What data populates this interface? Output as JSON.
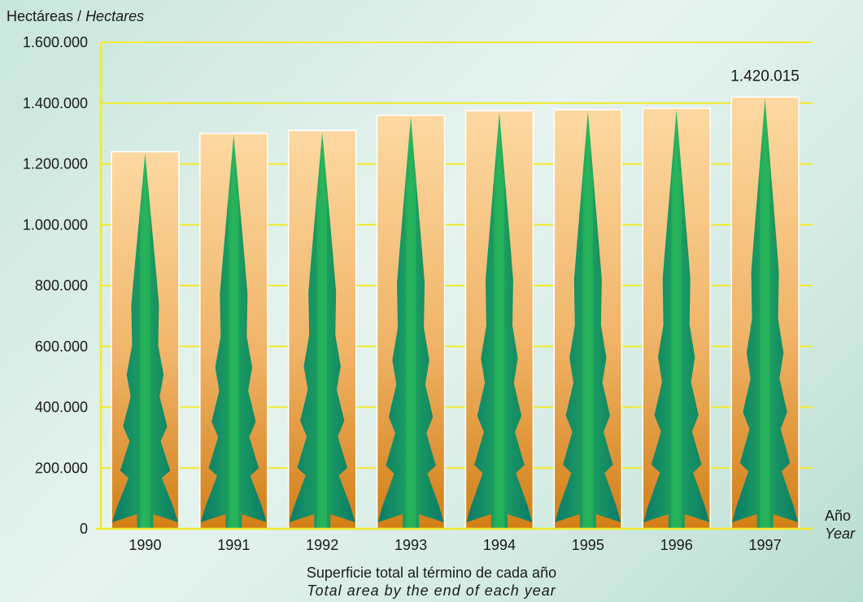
{
  "chart_data": {
    "type": "bar",
    "ylabel_es": "Hectáreas",
    "ylabel_sep": " / ",
    "ylabel_en": "Hectares",
    "xlabel_es": "Año",
    "xlabel_en": "Year",
    "caption_es": "Superficie total al término de cada año",
    "caption_en": "Total area by the end of each year",
    "categories": [
      "1990",
      "1991",
      "1992",
      "1993",
      "1994",
      "1995",
      "1996",
      "1997"
    ],
    "values": [
      1240000,
      1300000,
      1310000,
      1360000,
      1375000,
      1378000,
      1383000,
      1420015
    ],
    "ylim": [
      0,
      1600000
    ],
    "yticks": [
      0,
      200000,
      400000,
      600000,
      800000,
      1000000,
      1200000,
      1400000,
      1600000
    ],
    "ytick_labels": [
      "0",
      "200.000",
      "400.000",
      "600.000",
      "800.000",
      "1.000.000",
      "1.200.000",
      "1.400.000",
      "1.600.000"
    ],
    "annotation": {
      "category": "1997",
      "text": "1.420.015"
    },
    "grid": true
  },
  "colors": {
    "gridline": "#f2ea2a",
    "bar_top": "#fdd9a2",
    "bar_bottom": "#d27f16",
    "tree_dark": "#0b7a6a",
    "tree_light": "#27b35a"
  }
}
